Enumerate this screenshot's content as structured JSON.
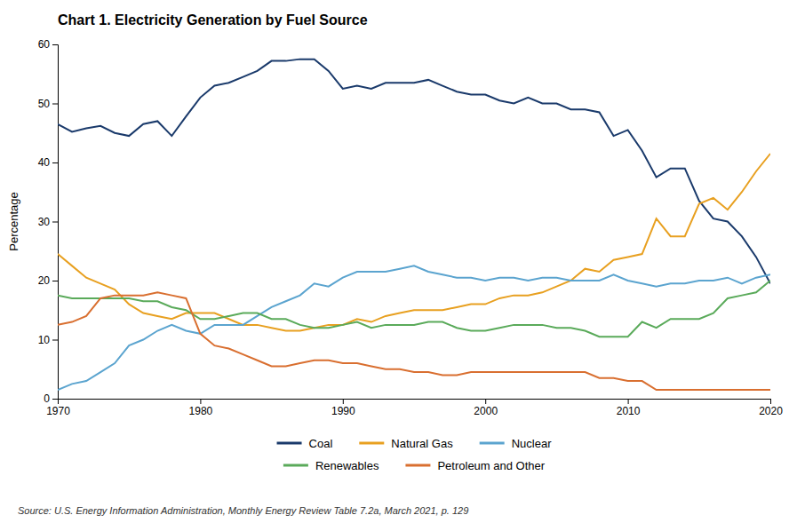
{
  "chart_data": {
    "type": "line",
    "title": "Chart 1. Electricity Generation by Fuel Source",
    "ylabel": "Percentage",
    "annotations": [
      "Source: U.S. Energy Information Administration, Monthly Energy Review Table 7.2a, March 2021, p. 129"
    ],
    "x": [
      1970,
      1971,
      1972,
      1973,
      1974,
      1975,
      1976,
      1977,
      1978,
      1979,
      1980,
      1981,
      1982,
      1983,
      1984,
      1985,
      1986,
      1987,
      1988,
      1989,
      1990,
      1991,
      1992,
      1993,
      1994,
      1995,
      1996,
      1997,
      1998,
      1999,
      2000,
      2001,
      2002,
      2003,
      2004,
      2005,
      2006,
      2007,
      2008,
      2009,
      2010,
      2011,
      2012,
      2013,
      2014,
      2015,
      2016,
      2017,
      2018,
      2019,
      2020
    ],
    "series": [
      {
        "name": "Coal",
        "color": "#1a3a6b",
        "values": [
          46.5,
          45.2,
          45.8,
          46.2,
          45.0,
          44.5,
          46.5,
          47.0,
          44.5,
          47.8,
          51.0,
          53.0,
          53.5,
          54.5,
          55.5,
          57.2,
          57.2,
          57.5,
          57.5,
          55.5,
          52.5,
          53.0,
          52.5,
          53.5,
          53.5,
          53.5,
          54.0,
          53.0,
          52.0,
          51.5,
          51.5,
          50.5,
          50.0,
          51.0,
          50.0,
          50.0,
          49.0,
          49.0,
          48.5,
          44.5,
          45.5,
          42.0,
          37.5,
          39.0,
          39.0,
          33.5,
          30.5,
          30.0,
          27.5,
          24.0,
          19.5
        ]
      },
      {
        "name": "Natural Gas",
        "color": "#e8a020",
        "values": [
          24.5,
          22.5,
          20.5,
          19.5,
          18.5,
          16.0,
          14.5,
          14.0,
          13.5,
          14.5,
          14.5,
          14.5,
          13.5,
          12.5,
          12.5,
          12.0,
          11.5,
          11.5,
          12.0,
          12.5,
          12.5,
          13.5,
          13.0,
          14.0,
          14.5,
          15.0,
          15.0,
          15.0,
          15.5,
          16.0,
          16.0,
          17.0,
          17.5,
          17.5,
          18.0,
          19.0,
          20.0,
          22.0,
          21.5,
          23.5,
          24.0,
          24.5,
          30.5,
          27.5,
          27.5,
          33.0,
          34.0,
          32.0,
          35.0,
          38.5,
          41.5
        ]
      },
      {
        "name": "Nuclear",
        "color": "#5ba4cf",
        "values": [
          1.5,
          2.5,
          3.0,
          4.5,
          6.0,
          9.0,
          10.0,
          11.5,
          12.5,
          11.5,
          11.0,
          12.5,
          12.5,
          12.5,
          14.0,
          15.5,
          16.5,
          17.5,
          19.5,
          19.0,
          20.5,
          21.5,
          21.5,
          21.5,
          22.0,
          22.5,
          21.5,
          21.0,
          20.5,
          20.5,
          20.0,
          20.5,
          20.5,
          20.0,
          20.5,
          20.5,
          20.0,
          20.0,
          20.0,
          21.0,
          20.0,
          19.5,
          19.0,
          19.5,
          19.5,
          20.0,
          20.0,
          20.5,
          19.5,
          20.5,
          21.0
        ]
      },
      {
        "name": "Renewables",
        "color": "#5aaa5a",
        "values": [
          17.5,
          17.0,
          17.0,
          17.0,
          17.0,
          17.0,
          16.5,
          16.5,
          15.5,
          15.0,
          13.5,
          13.5,
          14.0,
          14.5,
          14.5,
          13.5,
          13.5,
          12.5,
          12.0,
          12.0,
          12.5,
          13.0,
          12.0,
          12.5,
          12.5,
          12.5,
          13.0,
          13.0,
          12.0,
          11.5,
          11.5,
          12.0,
          12.5,
          12.5,
          12.5,
          12.0,
          12.0,
          11.5,
          10.5,
          10.5,
          10.5,
          13.0,
          12.0,
          13.5,
          13.5,
          13.5,
          14.5,
          17.0,
          17.5,
          18.0,
          20.0
        ]
      },
      {
        "name": "Petroleum and Other",
        "color": "#d96f30",
        "values": [
          12.5,
          13.0,
          14.0,
          17.0,
          17.5,
          17.5,
          17.5,
          18.0,
          17.5,
          17.0,
          11.0,
          9.0,
          8.5,
          7.5,
          6.5,
          5.5,
          5.5,
          6.0,
          6.5,
          6.5,
          6.0,
          6.0,
          5.5,
          5.0,
          5.0,
          4.5,
          4.5,
          4.0,
          4.0,
          4.5,
          4.5,
          4.5,
          4.5,
          4.5,
          4.5,
          4.5,
          4.5,
          4.5,
          3.5,
          3.5,
          3.0,
          3.0,
          1.5,
          1.5,
          1.5,
          1.5,
          1.5,
          1.5,
          1.5,
          1.5,
          1.5
        ]
      }
    ],
    "xlim": [
      1970,
      2020
    ],
    "ylim": [
      0,
      60
    ],
    "xticks": [
      1970,
      1980,
      1990,
      2000,
      2010,
      2020
    ],
    "yticks": [
      0,
      10,
      20,
      30,
      40,
      50,
      60
    ],
    "grid": false,
    "legend": "bottom"
  }
}
